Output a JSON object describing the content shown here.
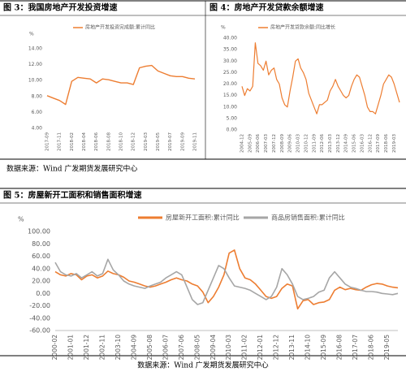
{
  "chart_data": [
    {
      "type": "line",
      "title": "图 3：我国房地产开发投资增速",
      "y_label": "%",
      "categories": [
        "2017-09",
        null,
        "2017-11",
        null,
        "2018-02",
        null,
        "2018-04",
        null,
        "2018-06",
        null,
        "2018-08",
        null,
        "2018-10",
        null,
        "2018-12",
        null,
        "2019-03",
        null,
        "2019-05",
        null,
        "2019-07",
        null,
        "2019-09",
        null,
        "2019-11"
      ],
      "series": [
        {
          "name": "房地产开发投资完成额:累计同比",
          "color": "#ed7d31",
          "values": [
            8.1,
            7.8,
            7.5,
            7.0,
            9.9,
            10.4,
            10.3,
            10.2,
            9.7,
            10.2,
            10.1,
            9.9,
            9.7,
            9.7,
            9.5,
            11.6,
            11.8,
            11.9,
            11.2,
            10.9,
            10.6,
            10.5,
            10.5,
            10.3,
            10.2
          ]
        }
      ],
      "ylim": [
        4,
        14
      ],
      "yticks": [
        {
          "value": 4,
          "label": "4.00"
        },
        {
          "value": 6,
          "label": "6.00"
        },
        {
          "value": 8,
          "label": "8.00"
        },
        {
          "value": 10,
          "label": "10.00"
        },
        {
          "value": 12,
          "label": "12.00"
        },
        {
          "value": 14,
          "label": "14.00"
        }
      ],
      "grid": false
    },
    {
      "type": "line",
      "title": "图 4：房地产开发贷款余额增速",
      "y_label": "%",
      "categories": [
        "2004-12",
        null,
        null,
        "2005-09",
        null,
        null,
        "2006-06",
        null,
        null,
        "2007-03",
        null,
        null,
        "2007-12",
        null,
        null,
        "2008-09",
        null,
        null,
        "2009-06",
        null,
        null,
        "2010-03",
        null,
        null,
        "2010-12",
        null,
        null,
        "2011-09",
        null,
        null,
        "2012-06",
        null,
        null,
        "2013-03",
        null,
        null,
        "2013-12",
        null,
        null,
        "2014-09",
        null,
        null,
        "2015-06",
        null,
        null,
        "2016-03",
        null,
        null,
        "2016-12",
        null,
        null,
        "2017-09",
        null,
        null,
        "2018-06",
        null,
        null,
        "2019-03",
        null,
        null
      ],
      "series": [
        {
          "name": "房地产开发贷款余额:同比增长",
          "color": "#ed7d31",
          "values": [
            19,
            15,
            18,
            17,
            19,
            38,
            29,
            28,
            26,
            30,
            24,
            26,
            27,
            22,
            20,
            14,
            11,
            10,
            17,
            23,
            30,
            31,
            27,
            25,
            22,
            16,
            13,
            10,
            7,
            11,
            11,
            12,
            13,
            17,
            19,
            22,
            19,
            17,
            15,
            14,
            15,
            19,
            22,
            24,
            23,
            19,
            15,
            10,
            8,
            8,
            7,
            11,
            15,
            20,
            22,
            24,
            23,
            20,
            16,
            12
          ]
        }
      ],
      "ylim": [
        0,
        40
      ],
      "yticks": [
        {
          "value": 0,
          "label": "0.00"
        },
        {
          "value": 5,
          "label": "5.00"
        },
        {
          "value": 10,
          "label": "10.00"
        },
        {
          "value": 15,
          "label": "15.00"
        },
        {
          "value": 20,
          "label": "20.00"
        },
        {
          "value": 25,
          "label": "25.00"
        },
        {
          "value": 30,
          "label": "30.00"
        },
        {
          "value": 35,
          "label": "35.00"
        },
        {
          "value": 40,
          "label": "40.00"
        }
      ],
      "grid": false
    },
    {
      "type": "line",
      "title": "图 5：房屋新开工面积和销售面积增速",
      "y_label": "%",
      "categories": [
        "2000-02",
        null,
        null,
        "2001-01",
        null,
        null,
        "2001-12",
        null,
        null,
        "2002-11",
        null,
        null,
        "2003-10",
        null,
        null,
        "2004-09",
        null,
        null,
        "2005-08",
        null,
        null,
        "2006-07",
        null,
        null,
        "2007-06",
        null,
        null,
        "2008-05",
        null,
        null,
        "2009-04",
        null,
        null,
        "2010-03",
        null,
        null,
        "2011-02",
        null,
        null,
        "2012-01",
        null,
        null,
        "2012-12",
        null,
        null,
        "2013-11",
        null,
        null,
        "2014-10",
        null,
        null,
        "2015-09",
        null,
        null,
        "2016-08",
        null,
        null,
        "2017-07",
        null,
        null,
        "2018-06",
        null,
        null,
        "2019-05",
        null,
        null
      ],
      "series": [
        {
          "name": "房屋新开工面积:累计同比",
          "color": "#ed7d31",
          "values": [
            35,
            30,
            28,
            32,
            30,
            22,
            28,
            30,
            25,
            28,
            36,
            32,
            30,
            26,
            20,
            18,
            15,
            12,
            10,
            12,
            15,
            18,
            22,
            25,
            22,
            20,
            15,
            12,
            2,
            -15,
            -5,
            10,
            30,
            65,
            70,
            40,
            25,
            22,
            15,
            5,
            -5,
            -8,
            -5,
            8,
            15,
            12,
            -25,
            -12,
            -10,
            -18,
            -15,
            -14,
            -10,
            5,
            10,
            6,
            8,
            6,
            5,
            10,
            14,
            16,
            15,
            12,
            10,
            9
          ]
        },
        {
          "name": "商品房销售面积:累计同比",
          "color": "#a6a6a6",
          "values": [
            50,
            35,
            30,
            28,
            32,
            25,
            30,
            35,
            28,
            32,
            55,
            38,
            30,
            20,
            15,
            12,
            10,
            8,
            12,
            15,
            18,
            25,
            30,
            35,
            30,
            10,
            -10,
            -18,
            -15,
            5,
            25,
            45,
            40,
            25,
            12,
            10,
            8,
            5,
            0,
            -5,
            -10,
            -5,
            10,
            40,
            30,
            15,
            -5,
            -10,
            -8,
            -5,
            2,
            5,
            25,
            35,
            25,
            15,
            10,
            8,
            5,
            3,
            3,
            2,
            0,
            -1,
            -2,
            0
          ]
        }
      ],
      "ylim": [
        -60,
        100
      ],
      "yticks": [
        {
          "value": -60,
          "label": "-60.00"
        },
        {
          "value": -40,
          "label": "-40.00"
        },
        {
          "value": -20,
          "label": "-20.00"
        },
        {
          "value": 0,
          "label": "0.00"
        },
        {
          "value": 20,
          "label": "20.00"
        },
        {
          "value": 40,
          "label": "40.00"
        },
        {
          "value": 60,
          "label": "60.00"
        },
        {
          "value": 80,
          "label": "80.00"
        },
        {
          "value": 100,
          "label": "100.00"
        }
      ],
      "grid": false
    }
  ],
  "sources": [
    "数据来源：Wind 广发期货发展研究中心",
    "数据来源：Wind  广发期货发展研究中心"
  ]
}
